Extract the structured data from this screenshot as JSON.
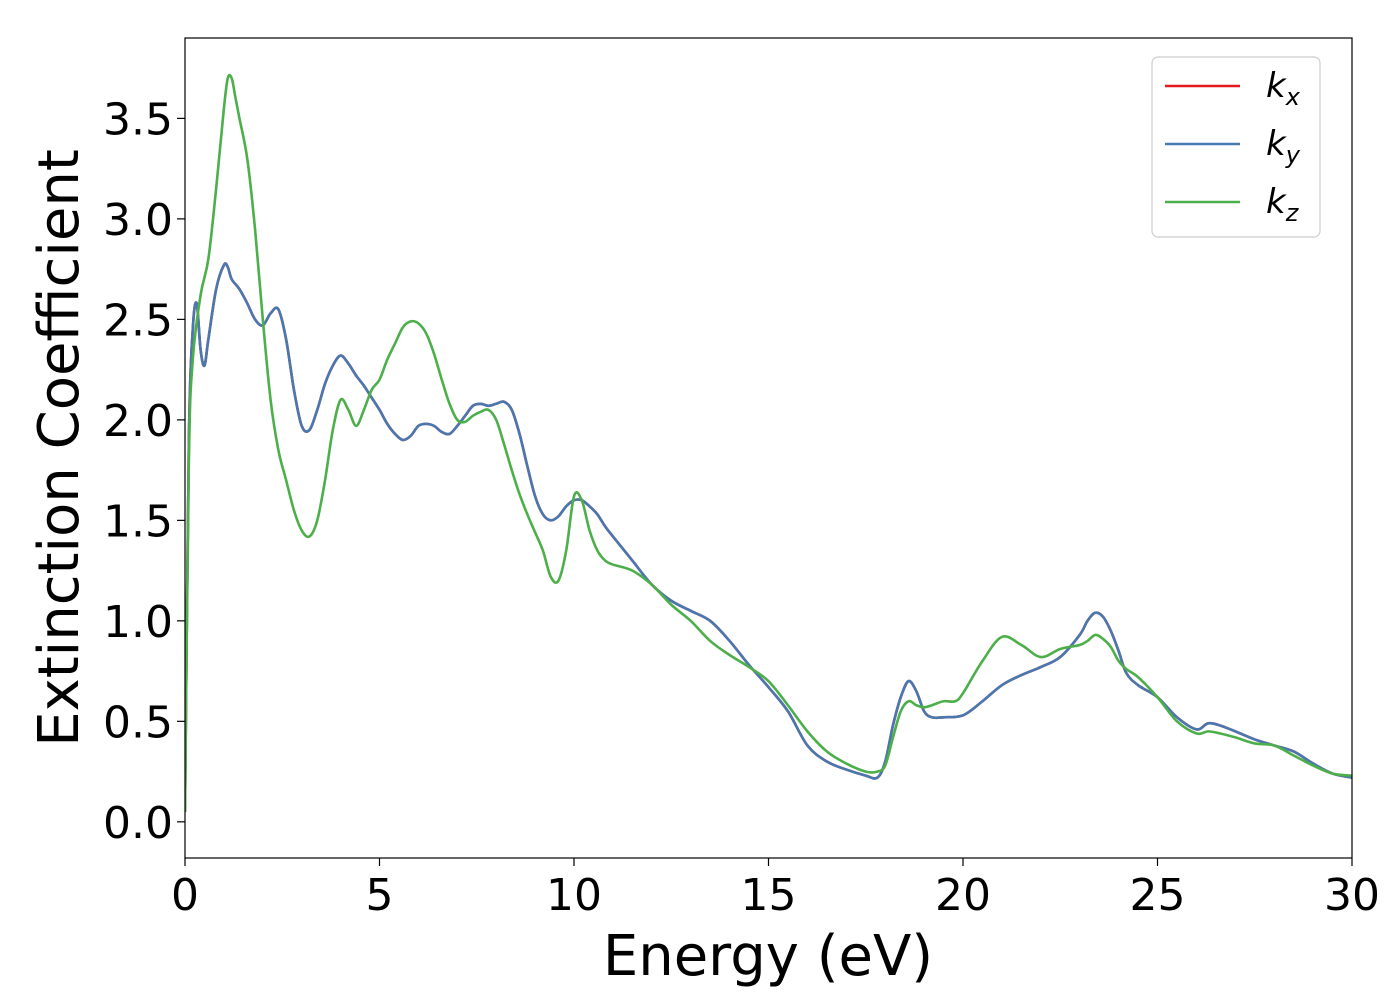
{
  "chart_data": {
    "type": "line",
    "title": "",
    "xlabel": "Energy (eV)",
    "ylabel": "Extinction Coefficient",
    "xlim": [
      0,
      30
    ],
    "ylim": [
      -0.18,
      3.9
    ],
    "xticks": [
      0,
      5,
      10,
      15,
      20,
      25,
      30
    ],
    "xtick_labels": [
      "0",
      "5",
      "10",
      "15",
      "20",
      "25",
      "30"
    ],
    "yticks": [
      0.0,
      0.5,
      1.0,
      1.5,
      2.0,
      2.5,
      3.0,
      3.5
    ],
    "ytick_labels": [
      "0.0",
      "0.5",
      "1.0",
      "1.5",
      "2.0",
      "2.5",
      "3.0",
      "3.5"
    ],
    "grid": false,
    "legend_position": "top-right",
    "series": [
      {
        "name": "k_x",
        "legend_main": "k",
        "legend_sub": "x",
        "color": "#e41a1c",
        "x": [
          0,
          0.1,
          0.2,
          0.3,
          0.4,
          0.5,
          0.6,
          0.8,
          1.0,
          1.1,
          1.2,
          1.4,
          1.6,
          1.8,
          2.0,
          2.2,
          2.4,
          2.6,
          2.8,
          3.0,
          3.2,
          3.4,
          3.6,
          3.8,
          4.0,
          4.2,
          4.4,
          4.6,
          4.8,
          5.0,
          5.2,
          5.4,
          5.6,
          5.8,
          6.0,
          6.2,
          6.4,
          6.6,
          6.8,
          7.0,
          7.2,
          7.4,
          7.6,
          7.8,
          8.0,
          8.2,
          8.4,
          8.6,
          8.8,
          9.0,
          9.2,
          9.4,
          9.6,
          9.8,
          10.0,
          10.2,
          10.4,
          10.6,
          10.8,
          11.0,
          11.5,
          12.0,
          12.5,
          13.0,
          13.5,
          14.0,
          14.5,
          15.0,
          15.5,
          16.0,
          16.5,
          17.0,
          17.5,
          17.8,
          18.0,
          18.2,
          18.4,
          18.6,
          18.8,
          19.0,
          19.2,
          19.5,
          20.0,
          20.5,
          21.0,
          21.5,
          22.0,
          22.5,
          23.0,
          23.2,
          23.4,
          23.6,
          23.8,
          24.0,
          24.2,
          24.5,
          25.0,
          25.5,
          26.0,
          26.3,
          26.6,
          27.0,
          27.5,
          28.0,
          28.5,
          29.0,
          29.5,
          30.0
        ],
        "y": [
          0.05,
          1.9,
          2.45,
          2.58,
          2.35,
          2.27,
          2.4,
          2.65,
          2.77,
          2.76,
          2.7,
          2.65,
          2.58,
          2.5,
          2.47,
          2.53,
          2.55,
          2.4,
          2.15,
          1.97,
          1.95,
          2.05,
          2.18,
          2.27,
          2.32,
          2.28,
          2.22,
          2.17,
          2.11,
          2.05,
          1.98,
          1.93,
          1.9,
          1.92,
          1.97,
          1.98,
          1.97,
          1.94,
          1.93,
          1.97,
          2.02,
          2.07,
          2.08,
          2.07,
          2.08,
          2.09,
          2.05,
          1.93,
          1.77,
          1.62,
          1.53,
          1.5,
          1.52,
          1.57,
          1.6,
          1.6,
          1.57,
          1.53,
          1.47,
          1.42,
          1.3,
          1.18,
          1.1,
          1.05,
          1.0,
          0.9,
          0.78,
          0.67,
          0.55,
          0.38,
          0.3,
          0.26,
          0.23,
          0.22,
          0.3,
          0.48,
          0.62,
          0.7,
          0.65,
          0.55,
          0.52,
          0.52,
          0.53,
          0.6,
          0.68,
          0.73,
          0.77,
          0.82,
          0.93,
          1.0,
          1.04,
          1.02,
          0.95,
          0.85,
          0.74,
          0.68,
          0.62,
          0.52,
          0.46,
          0.49,
          0.48,
          0.45,
          0.41,
          0.38,
          0.35,
          0.29,
          0.24,
          0.22
        ]
      },
      {
        "name": "k_y",
        "legend_main": "k",
        "legend_sub": "y",
        "color": "#4878b0",
        "x": [
          0,
          0.1,
          0.2,
          0.3,
          0.4,
          0.5,
          0.6,
          0.8,
          1.0,
          1.1,
          1.2,
          1.4,
          1.6,
          1.8,
          2.0,
          2.2,
          2.4,
          2.6,
          2.8,
          3.0,
          3.2,
          3.4,
          3.6,
          3.8,
          4.0,
          4.2,
          4.4,
          4.6,
          4.8,
          5.0,
          5.2,
          5.4,
          5.6,
          5.8,
          6.0,
          6.2,
          6.4,
          6.6,
          6.8,
          7.0,
          7.2,
          7.4,
          7.6,
          7.8,
          8.0,
          8.2,
          8.4,
          8.6,
          8.8,
          9.0,
          9.2,
          9.4,
          9.6,
          9.8,
          10.0,
          10.2,
          10.4,
          10.6,
          10.8,
          11.0,
          11.5,
          12.0,
          12.5,
          13.0,
          13.5,
          14.0,
          14.5,
          15.0,
          15.5,
          16.0,
          16.5,
          17.0,
          17.5,
          17.8,
          18.0,
          18.2,
          18.4,
          18.6,
          18.8,
          19.0,
          19.2,
          19.5,
          20.0,
          20.5,
          21.0,
          21.5,
          22.0,
          22.5,
          23.0,
          23.2,
          23.4,
          23.6,
          23.8,
          24.0,
          24.2,
          24.5,
          25.0,
          25.5,
          26.0,
          26.3,
          26.6,
          27.0,
          27.5,
          28.0,
          28.5,
          29.0,
          29.5,
          30.0
        ],
        "y": [
          0.05,
          1.9,
          2.45,
          2.58,
          2.35,
          2.27,
          2.4,
          2.65,
          2.77,
          2.76,
          2.7,
          2.65,
          2.58,
          2.5,
          2.47,
          2.53,
          2.55,
          2.4,
          2.15,
          1.97,
          1.95,
          2.05,
          2.18,
          2.27,
          2.32,
          2.28,
          2.22,
          2.17,
          2.11,
          2.05,
          1.98,
          1.93,
          1.9,
          1.92,
          1.97,
          1.98,
          1.97,
          1.94,
          1.93,
          1.97,
          2.02,
          2.07,
          2.08,
          2.07,
          2.08,
          2.09,
          2.05,
          1.93,
          1.77,
          1.62,
          1.53,
          1.5,
          1.52,
          1.57,
          1.6,
          1.6,
          1.57,
          1.53,
          1.47,
          1.42,
          1.3,
          1.18,
          1.1,
          1.05,
          1.0,
          0.9,
          0.78,
          0.67,
          0.55,
          0.38,
          0.3,
          0.26,
          0.23,
          0.22,
          0.3,
          0.48,
          0.62,
          0.7,
          0.65,
          0.55,
          0.52,
          0.52,
          0.53,
          0.6,
          0.68,
          0.73,
          0.77,
          0.82,
          0.93,
          1.0,
          1.04,
          1.02,
          0.95,
          0.85,
          0.74,
          0.68,
          0.62,
          0.52,
          0.46,
          0.49,
          0.48,
          0.45,
          0.41,
          0.38,
          0.35,
          0.29,
          0.24,
          0.22
        ]
      },
      {
        "name": "k_z",
        "legend_main": "k",
        "legend_sub": "z",
        "color": "#4daf4a",
        "x": [
          0,
          0.1,
          0.2,
          0.4,
          0.6,
          0.8,
          1.0,
          1.1,
          1.2,
          1.3,
          1.4,
          1.6,
          1.8,
          2.0,
          2.2,
          2.4,
          2.6,
          2.8,
          3.0,
          3.2,
          3.4,
          3.6,
          3.8,
          4.0,
          4.2,
          4.4,
          4.6,
          4.8,
          5.0,
          5.2,
          5.4,
          5.6,
          5.8,
          6.0,
          6.2,
          6.4,
          6.6,
          6.8,
          7.0,
          7.2,
          7.4,
          7.6,
          7.8,
          8.0,
          8.2,
          8.4,
          8.6,
          8.8,
          9.0,
          9.2,
          9.4,
          9.6,
          9.8,
          10.0,
          10.2,
          10.4,
          10.6,
          10.8,
          11.0,
          11.5,
          12.0,
          12.5,
          13.0,
          13.5,
          14.0,
          14.5,
          15.0,
          15.5,
          16.0,
          16.5,
          17.0,
          17.5,
          17.8,
          18.0,
          18.2,
          18.4,
          18.6,
          18.8,
          19.0,
          19.2,
          19.5,
          19.8,
          20.0,
          20.5,
          21.0,
          21.5,
          22.0,
          22.5,
          23.0,
          23.2,
          23.4,
          23.6,
          23.8,
          24.0,
          24.2,
          24.5,
          25.0,
          25.5,
          26.0,
          26.3,
          26.6,
          27.0,
          27.5,
          28.0,
          28.5,
          29.0,
          29.5,
          30.0
        ],
        "y": [
          0.05,
          1.8,
          2.3,
          2.62,
          2.8,
          3.15,
          3.55,
          3.7,
          3.7,
          3.6,
          3.5,
          3.3,
          2.95,
          2.5,
          2.1,
          1.85,
          1.7,
          1.55,
          1.45,
          1.42,
          1.5,
          1.7,
          1.95,
          2.1,
          2.05,
          1.97,
          2.05,
          2.15,
          2.2,
          2.3,
          2.38,
          2.46,
          2.49,
          2.48,
          2.43,
          2.33,
          2.2,
          2.08,
          2.0,
          1.99,
          2.02,
          2.04,
          2.05,
          2.0,
          1.88,
          1.75,
          1.63,
          1.53,
          1.44,
          1.35,
          1.22,
          1.2,
          1.35,
          1.62,
          1.6,
          1.45,
          1.35,
          1.3,
          1.28,
          1.25,
          1.18,
          1.08,
          1.0,
          0.9,
          0.83,
          0.77,
          0.7,
          0.58,
          0.45,
          0.35,
          0.29,
          0.25,
          0.25,
          0.28,
          0.42,
          0.55,
          0.6,
          0.58,
          0.57,
          0.58,
          0.6,
          0.6,
          0.64,
          0.8,
          0.92,
          0.88,
          0.82,
          0.86,
          0.88,
          0.9,
          0.93,
          0.91,
          0.87,
          0.8,
          0.76,
          0.72,
          0.62,
          0.5,
          0.44,
          0.45,
          0.44,
          0.42,
          0.39,
          0.38,
          0.33,
          0.28,
          0.24,
          0.23
        ]
      }
    ]
  }
}
